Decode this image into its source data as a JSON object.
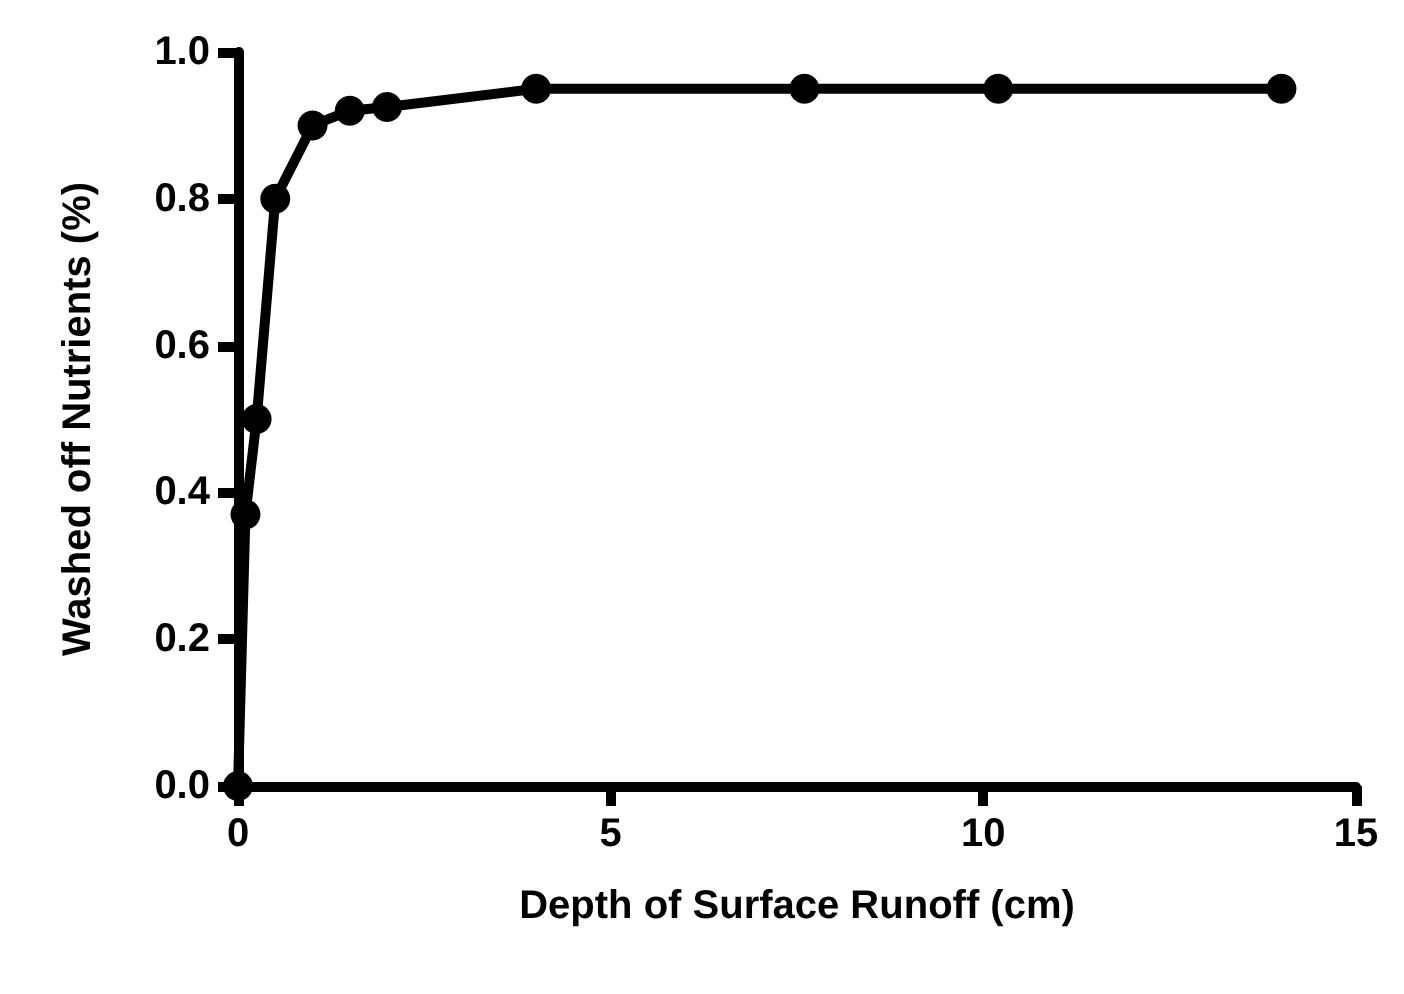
{
  "chart_data": {
    "type": "line",
    "xlabel": "Depth of Surface Runoff (cm)",
    "ylabel": "Washed off Nutrients (%)",
    "x": [
      0,
      0.1,
      0.25,
      0.5,
      1,
      1.5,
      2,
      4,
      7.6,
      10.2,
      14
    ],
    "series": [
      {
        "color": "#000000",
        "values": [
          0,
          0.37,
          0.5,
          0.8,
          0.9,
          0.92,
          0.925,
          0.95,
          0.95,
          0.95,
          0.95
        ]
      }
    ],
    "xlim": [
      0,
      15
    ],
    "xticks": [
      0,
      5,
      10,
      15
    ],
    "ylim": [
      0,
      1
    ],
    "yticks": [
      {
        "value": 0,
        "label": "0.0"
      },
      {
        "value": 0.2,
        "label": "0.2"
      },
      {
        "value": 0.4,
        "label": "0.4"
      },
      {
        "value": 0.6,
        "label": "0.6"
      },
      {
        "value": 0.8,
        "label": "0.8"
      },
      {
        "value": 1,
        "label": "1.0"
      }
    ],
    "grid": false,
    "marker": "circle",
    "line_style": "solid"
  }
}
